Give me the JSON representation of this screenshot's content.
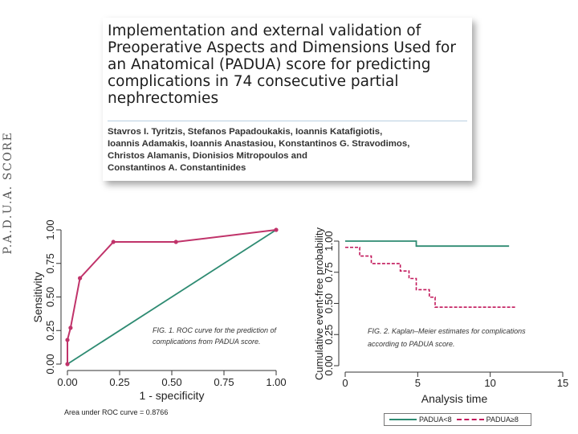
{
  "side_label": "P.A.D.U.A. SCORE",
  "paper": {
    "title_lines": [
      "Implementation and external validation of",
      "Preoperative Aspects and Dimensions Used for",
      "an Anatomical (PADUA) score for predicting",
      "complications in 74 consecutive partial",
      "nephrectomies"
    ],
    "author_lines": [
      "Stavros I. Tyritzis, Stefanos Papadoukakis, Ioannis Katafigiotis,",
      "Ioannis Adamakis, Ioannis Anastasiou, Konstantinos G. Stravodimos,",
      "Christos Alamanis, Dionisios Mitropoulos and",
      "Constantinos A. Constantinides"
    ]
  },
  "figure1_caption_lines": [
    "FIG. 1. ROC curve for the prediction of",
    "complications from PADUA score."
  ],
  "figure2_caption_lines": [
    "FIG. 2. Kaplan–Meier estimates for complications",
    "according to PADUA score."
  ],
  "roc_area_note": "Area under ROC curve = 0.8766",
  "colors": {
    "roc": "#c0336a",
    "reference": "#2e8b72",
    "group_low": "#2e8b72",
    "group_high": "#c2185b"
  },
  "chart_data": [
    {
      "type": "line",
      "xlabel": "1 - specificity",
      "ylabel": "Sensitivity",
      "xlim": [
        0,
        1
      ],
      "ylim": [
        0,
        1
      ],
      "xticks": [
        "0.00",
        "0.25",
        "0.50",
        "0.75",
        "1.00"
      ],
      "yticks": [
        "0.00",
        "0.25",
        "0.50",
        "0.75",
        "1.00"
      ],
      "grid": false,
      "series": [
        {
          "role": "roc",
          "points": [
            [
              0,
              0
            ],
            [
              0.0,
              0.18
            ],
            [
              0.015,
              0.27
            ],
            [
              0.06,
              0.64
            ],
            [
              0.22,
              0.91
            ],
            [
              0.52,
              0.91
            ],
            [
              1,
              1
            ]
          ]
        },
        {
          "role": "reference",
          "points": [
            [
              0,
              0
            ],
            [
              1,
              1
            ]
          ]
        }
      ]
    },
    {
      "type": "line",
      "xlabel": "Analysis time",
      "ylabel": "Cumulative event-free probability",
      "xlim": [
        0,
        15
      ],
      "ylim": [
        0,
        1
      ],
      "xticks": [
        "0",
        "5",
        "10",
        "15"
      ],
      "yticks": [
        "0.00",
        "0.25",
        "0.50",
        "0.75",
        "1.00"
      ],
      "grid": false,
      "legend_position": "bottom",
      "series": [
        {
          "name": "PADUA<8",
          "step": true,
          "points": [
            [
              0,
              1.0
            ],
            [
              4.9,
              1.0
            ],
            [
              4.9,
              0.96
            ],
            [
              11.3,
              0.96
            ]
          ]
        },
        {
          "name": "PADUA≥8",
          "step": true,
          "points": [
            [
              0,
              0.95
            ],
            [
              1.0,
              0.95
            ],
            [
              1.0,
              0.88
            ],
            [
              1.8,
              0.88
            ],
            [
              1.8,
              0.82
            ],
            [
              3.8,
              0.82
            ],
            [
              3.8,
              0.76
            ],
            [
              4.4,
              0.76
            ],
            [
              4.4,
              0.7
            ],
            [
              4.9,
              0.7
            ],
            [
              4.9,
              0.61
            ],
            [
              5.8,
              0.61
            ],
            [
              5.8,
              0.55
            ],
            [
              6.2,
              0.55
            ],
            [
              6.2,
              0.47
            ],
            [
              11.8,
              0.47
            ]
          ]
        }
      ]
    }
  ]
}
